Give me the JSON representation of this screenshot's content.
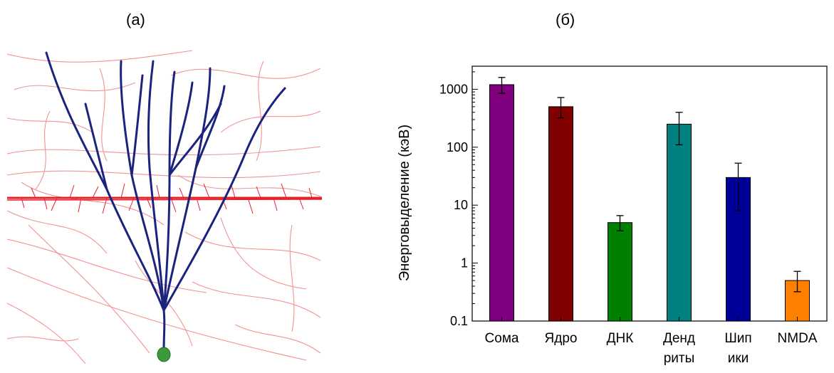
{
  "figure": {
    "panel_a_label": "(a)",
    "panel_b_label": "(б)"
  },
  "chart_data": {
    "type": "bar",
    "categories": [
      [
        "Сома"
      ],
      [
        "Ядро"
      ],
      [
        "ДНК"
      ],
      [
        "Денд",
        "риты"
      ],
      [
        "Шип",
        "ики"
      ],
      [
        "NMDA"
      ]
    ],
    "values": [
      1200,
      500,
      5,
      250,
      30,
      0.5
    ],
    "error_low": [
      850,
      320,
      3.6,
      110,
      8,
      0.32
    ],
    "error_high": [
      1600,
      720,
      6.6,
      400,
      53,
      0.72
    ],
    "colors": [
      "#800080",
      "#800000",
      "#008000",
      "#008080",
      "#000099",
      "#ff8000"
    ],
    "ylabel": "Энерговыделение (кэВ)",
    "yscale": "log",
    "ylim": [
      0.1,
      2500
    ],
    "yticks": [
      0.1,
      1,
      10,
      100,
      1000
    ],
    "ytick_labels": [
      "0.1",
      "1",
      "10",
      "100",
      "1000"
    ],
    "grid": false,
    "legend": "none"
  }
}
